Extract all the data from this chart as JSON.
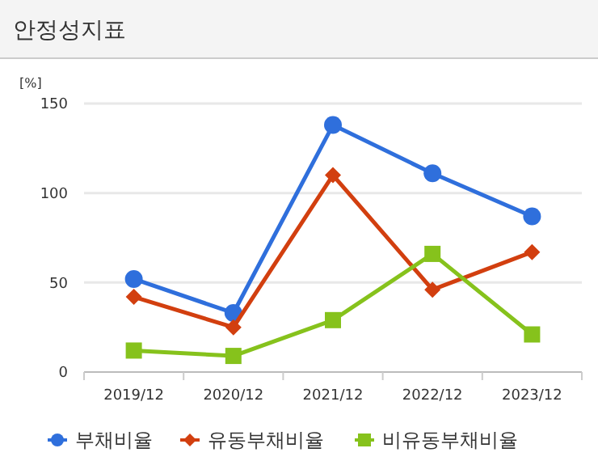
{
  "chart_data": {
    "type": "line",
    "title": "안정성지표",
    "ylabel": "[%]",
    "categories": [
      "2019/12",
      "2020/12",
      "2021/12",
      "2022/12",
      "2023/12"
    ],
    "series": [
      {
        "name": "부채비율",
        "color": "#2f6fdc",
        "marker": "circle",
        "values": [
          52,
          33,
          138,
          111,
          87
        ]
      },
      {
        "name": "유동부채비율",
        "color": "#d23f0f",
        "marker": "diamond",
        "values": [
          42,
          25,
          110,
          46,
          67
        ]
      },
      {
        "name": "비유동부채비율",
        "color": "#86c21c",
        "marker": "square",
        "values": [
          12,
          9,
          29,
          66,
          21
        ]
      }
    ],
    "ylim": [
      0,
      150
    ],
    "yticks": [
      0,
      50,
      100,
      150
    ],
    "grid": "y",
    "legend": "bottom"
  }
}
